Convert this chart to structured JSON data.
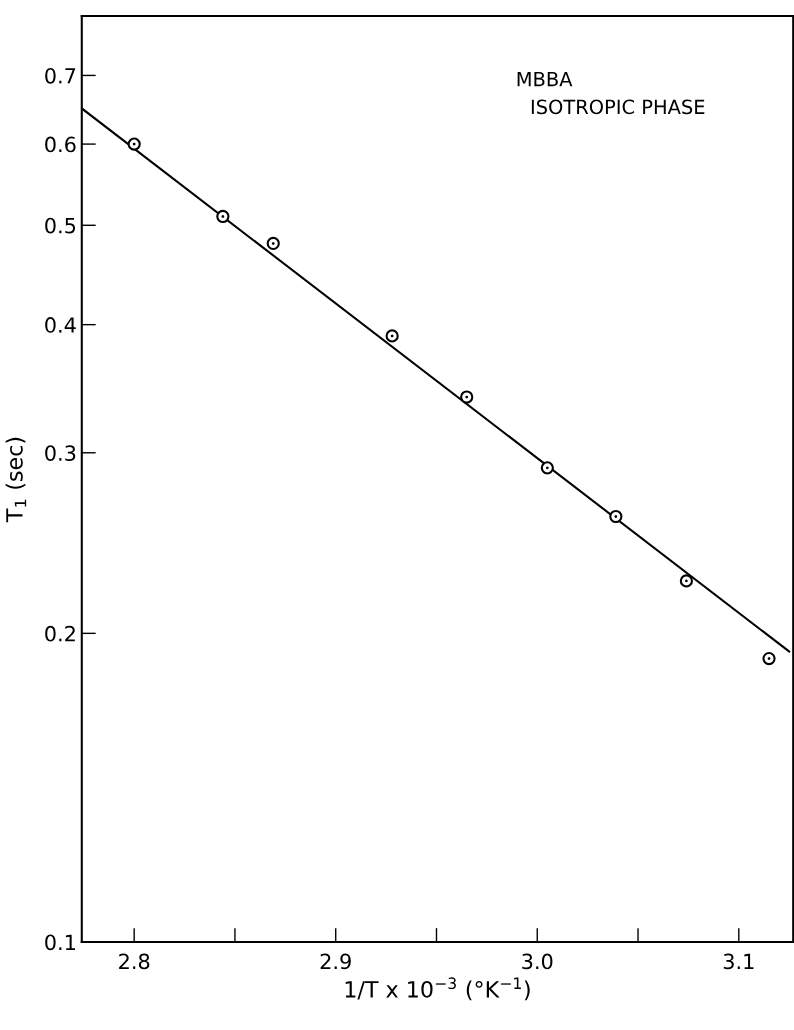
{
  "chart_data": {
    "type": "scatter",
    "xlabel": "1/T x 10$^{−3}$ (°K$^{−1}$)",
    "ylabel": "T$_{1}$ (sec)",
    "annotations": [
      "MBBA",
      "ISOTROPIC PHASE"
    ],
    "x": [
      2.8,
      2.844,
      2.869,
      2.928,
      2.965,
      3.005,
      3.039,
      3.074,
      3.115
    ],
    "series": [
      {
        "color": "#000000",
        "marker": "circle",
        "values": [
          0.6,
          0.51,
          0.48,
          0.39,
          0.34,
          0.29,
          0.26,
          0.225,
          0.189
        ]
      },
      {
        "type": "line",
        "color": "#000000",
        "marker": "none",
        "line_style": "solid",
        "x": [
          2.774,
          3.125
        ],
        "values": [
          0.65,
          0.192
        ]
      }
    ],
    "log": "y",
    "grid": false,
    "legend": false,
    "xlim": [
      2.774,
      3.127
    ],
    "ylim": [
      0.1,
      0.8
    ],
    "xticks": [
      2.8,
      {
        "value": 2.85,
        "label": null
      },
      2.9,
      {
        "value": 2.95,
        "label": null
      },
      {
        "value": 3.0,
        "label": "3.0"
      },
      {
        "value": 3.05,
        "label": null
      },
      3.1
    ],
    "yticks": [
      0.1,
      0.2,
      0.3,
      0.4,
      0.5,
      0.6,
      0.7
    ]
  }
}
